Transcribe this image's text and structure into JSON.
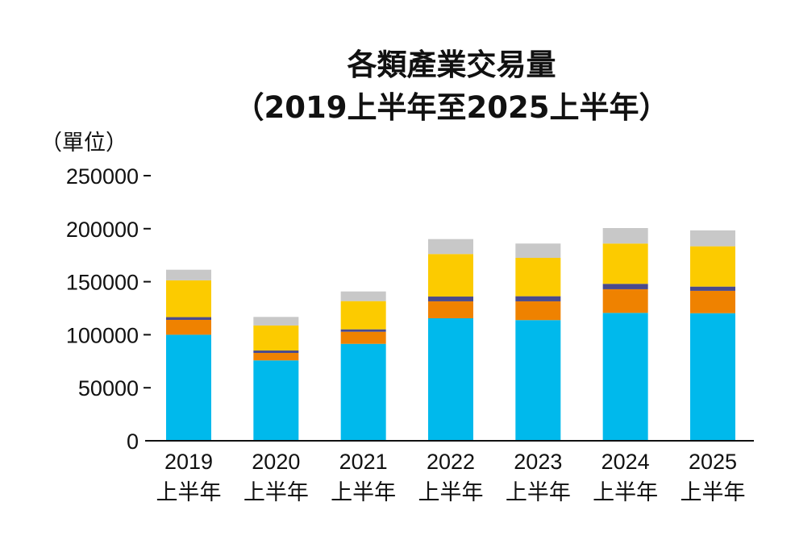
{
  "chart_data": {
    "type": "stacked-bar",
    "title": "各類產業交易量",
    "subtitle": "（2019上半年至2025上半年）",
    "ylabel": "（單位）",
    "xlabel": "",
    "ylim": [
      0,
      250000
    ],
    "yticks": [
      "0",
      "50000",
      "100000",
      "150000",
      "200000",
      "250000"
    ],
    "grid": false,
    "legend": "none",
    "categories": [
      {
        "year": "2019",
        "period": "上半年"
      },
      {
        "year": "2020",
        "period": "上半年"
      },
      {
        "year": "2021",
        "period": "上半年"
      },
      {
        "year": "2022",
        "period": "上半年"
      },
      {
        "year": "2023",
        "period": "上半年"
      },
      {
        "year": "2024",
        "period": "上半年"
      },
      {
        "year": "2025",
        "period": "上半年"
      }
    ],
    "series": [
      {
        "color": "#00b9ec",
        "values": [
          100000,
          75800,
          91400,
          115500,
          113800,
          120600,
          120300
        ]
      },
      {
        "color": "#ef8200",
        "values": [
          14000,
          7000,
          11400,
          16000,
          17700,
          22300,
          21100
        ]
      },
      {
        "color": "#4a4a8c",
        "values": [
          2600,
          2300,
          2300,
          4500,
          4800,
          5100,
          4000
        ]
      },
      {
        "color": "#fccb00",
        "values": [
          34700,
          23600,
          26600,
          40100,
          36200,
          38000,
          38000
        ]
      },
      {
        "color": "#c8c8c8",
        "values": [
          10000,
          8100,
          9100,
          14100,
          13500,
          14600,
          15000
        ]
      }
    ]
  }
}
